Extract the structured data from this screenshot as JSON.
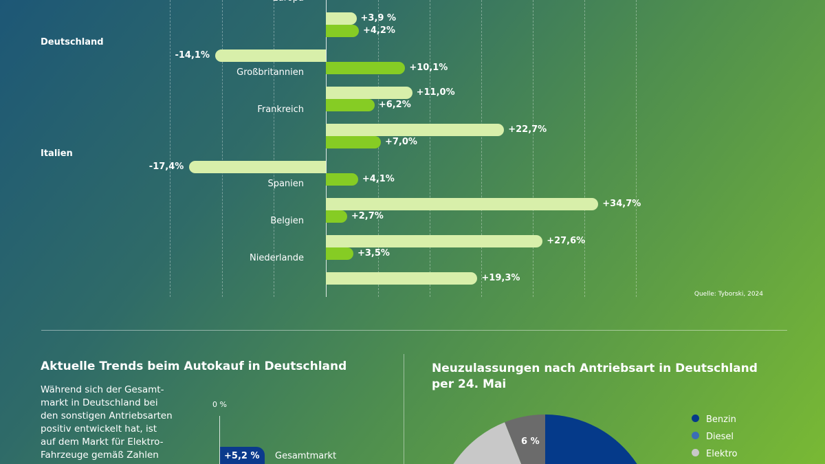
{
  "chart_data": [
    {
      "type": "bar",
      "orientation": "horizontal",
      "categories": [
        "Europa",
        "Deutschland",
        "Großbritannien",
        "Frankreich",
        "Italien",
        "Spanien",
        "Belgien",
        "Niederlande"
      ],
      "bold_categories": [
        "Deutschland",
        "Italien"
      ],
      "series": [
        {
          "color": "#86cc24",
          "values": [
            null,
            4.2,
            10.1,
            6.2,
            7.0,
            4.1,
            2.7,
            3.5
          ],
          "labels": [
            "",
            "+4,2%",
            "+10,1%",
            "+6,2%",
            "+7,0%",
            "+4,1%",
            "+2,7%",
            "+3,5%"
          ]
        },
        {
          "color": "#d8efaa",
          "values": [
            3.9,
            -14.1,
            11.0,
            22.7,
            -17.4,
            34.7,
            27.6,
            19.3
          ],
          "labels": [
            "+3,9 %",
            "-14,1%",
            "+11,0%",
            "+22,7%",
            "-17,4%",
            "+34,7%",
            "+27,6%",
            "+19,3%"
          ]
        }
      ],
      "source": "Quelle: Tyborski, 2024",
      "grid": true
    },
    {
      "type": "bar",
      "title": "Aktuelle Trends beim Autokauf in Deutschland",
      "text": "Während sich der Gesamt- markt in Deutschland bei den sonstigen Antriebsarten positiv entwickelt hat, ist auf dem Markt für Elektro- Fahrzeuge gemäß Zahlen",
      "text_lines": [
        "Während sich der Gesamt-",
        "markt in Deutschland bei",
        "den sonstigen Antriebsarten",
        "positiv entwickelt hat, ist",
        "auf dem Markt für Elektro-",
        "Fahrzeuge gemäß Zahlen"
      ],
      "axis_label": "0 %",
      "categories": [
        "Gesamtmarkt"
      ],
      "values": [
        5.2
      ],
      "labels": [
        "+5,2 %"
      ],
      "color": "#0b3a8c"
    },
    {
      "type": "pie",
      "title_lines": [
        "Neuzulassungen nach Antriebsart in Deutschland",
        "per 24. Mai"
      ],
      "legend": [
        {
          "name": "Benzin",
          "color": "#053a8a"
        },
        {
          "name": "Diesel",
          "color": "#3b6db5"
        },
        {
          "name": "Elektro",
          "color": "#c8c8c8"
        }
      ],
      "slice_labels": [
        "6 %"
      ],
      "slice_color_6": "#6b6b6b",
      "legend_position": "right"
    }
  ]
}
